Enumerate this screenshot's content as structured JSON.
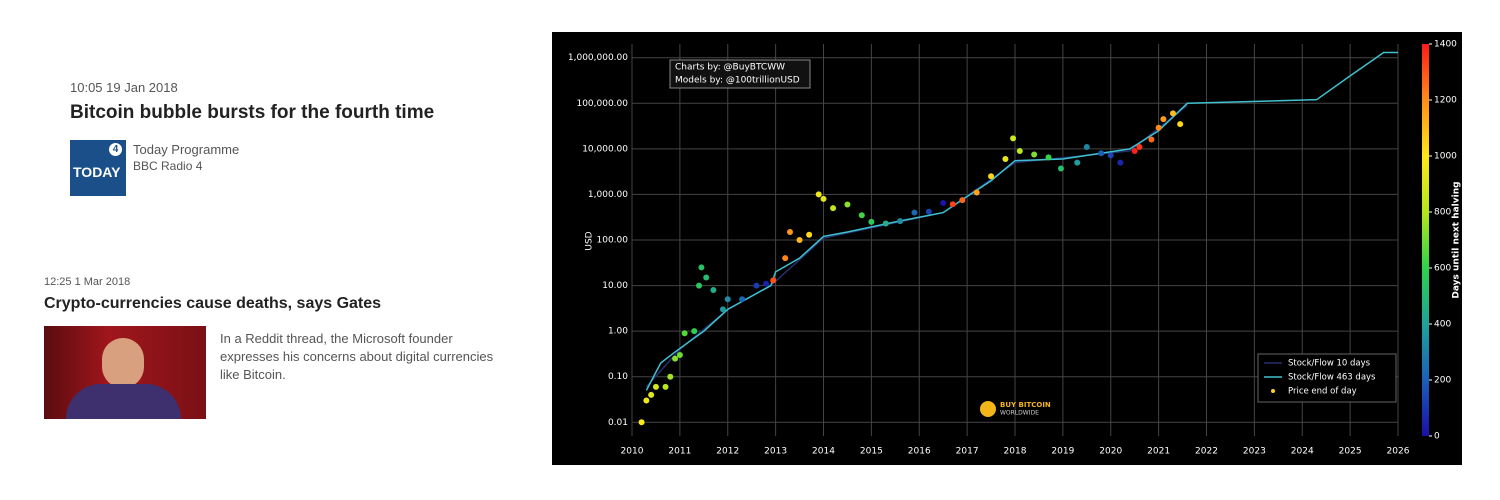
{
  "news": [
    {
      "time": "10:05 19 Jan 2018",
      "headline": "Bitcoin bubble bursts for the fourth time",
      "logo_text": "TODAY",
      "logo_badge": "4",
      "source": "Today Programme",
      "station": "BBC Radio 4"
    },
    {
      "time": "12:25 1 Mar 2018",
      "headline": "Crypto-currencies cause deaths, says Gates",
      "description": "In a Reddit thread, the Microsoft founder expresses his concerns about digital currencies like Bitcoin."
    }
  ],
  "chart_data": {
    "type": "scatter",
    "annotations": [
      "Charts by: @BuyBTCWW",
      "Models by: @100trillionUSD"
    ],
    "watermark": [
      "BUY BITCOIN",
      "WORLDWIDE"
    ],
    "ylabel": "USD",
    "ylog": true,
    "grid": true,
    "xlim": [
      2010,
      2026
    ],
    "xticks": [
      2010,
      2011,
      2012,
      2013,
      2014,
      2015,
      2016,
      2017,
      2018,
      2019,
      2020,
      2021,
      2022,
      2023,
      2024,
      2025,
      2026
    ],
    "ylim": [
      0.005,
      2000000
    ],
    "yticks": [
      {
        "value": 0.01,
        "label": "0.01"
      },
      {
        "value": 0.1,
        "label": "0.10"
      },
      {
        "value": 1,
        "label": "1.00"
      },
      {
        "value": 10,
        "label": "10.00"
      },
      {
        "value": 100,
        "label": "100.00"
      },
      {
        "value": 1000,
        "label": "1,000.00"
      },
      {
        "value": 10000,
        "label": "10,000.00"
      },
      {
        "value": 100000,
        "label": "100,000.00"
      },
      {
        "value": 1000000,
        "label": "1,000,000.00"
      }
    ],
    "colorbar_title": "Days until next halving",
    "clim": [
      0,
      1400
    ],
    "cticks": [
      0,
      200,
      400,
      600,
      800,
      1000,
      1200,
      1400
    ],
    "colorscale": [
      "#1a0fa8",
      "#1b5fb8",
      "#1fa39a",
      "#2ed24a",
      "#b5e61d",
      "#ffe81a",
      "#ff8c1a",
      "#ff1a1a"
    ],
    "legend": "bottom-right",
    "series": [
      {
        "name": "Stock/Flow 10 days",
        "mode": "line",
        "color": "#26306e",
        "x": [
          2010.3,
          2011.0,
          2012.0,
          2012.9,
          2014.0,
          2016.5,
          2018.0,
          2020.4,
          2021.6
        ],
        "values": [
          0.06,
          0.4,
          3,
          10,
          110,
          400,
          5000,
          9000,
          90000
        ]
      },
      {
        "name": "Stock/Flow 463 days",
        "mode": "line",
        "color": "#3fc1cf",
        "x": [
          2010.3,
          2010.6,
          2010.9,
          2011.5,
          2012.0,
          2012.9,
          2013.0,
          2013.5,
          2014.0,
          2014.5,
          2015.5,
          2016.5,
          2017.0,
          2017.5,
          2018.0,
          2019.0,
          2020.4,
          2021.0,
          2021.6,
          2024.3,
          2025.0,
          2025.7,
          2026.0
        ],
        "values": [
          0.05,
          0.2,
          0.35,
          1,
          3,
          10,
          20,
          40,
          120,
          150,
          250,
          400,
          900,
          2000,
          5500,
          6000,
          10000,
          25000,
          100000,
          120000,
          400000,
          1300000,
          1300000
        ]
      },
      {
        "name": "Price end of day",
        "mode": "markers",
        "color": "#ffd21a",
        "x": [
          2010.2,
          2010.3,
          2010.4,
          2010.5,
          2010.7,
          2010.8,
          2010.9,
          2011.0,
          2011.1,
          2011.3,
          2011.4,
          2011.45,
          2011.55,
          2011.7,
          2011.9,
          2012.0,
          2012.3,
          2012.6,
          2012.8,
          2012.95,
          2013.2,
          2013.3,
          2013.5,
          2013.7,
          2013.9,
          2014.0,
          2014.2,
          2014.5,
          2014.8,
          2015.0,
          2015.3,
          2015.6,
          2015.9,
          2016.2,
          2016.5,
          2016.7,
          2016.9,
          2017.2,
          2017.5,
          2017.8,
          2017.96,
          2018.1,
          2018.4,
          2018.7,
          2018.96,
          2019.3,
          2019.5,
          2019.8,
          2020.0,
          2020.2,
          2020.5,
          2020.6,
          2020.85,
          2021.0,
          2021.1,
          2021.3,
          2021.45
        ],
        "values": [
          0.01,
          0.03,
          0.04,
          0.06,
          0.06,
          0.1,
          0.25,
          0.3,
          0.9,
          1,
          10,
          25,
          15,
          8,
          3,
          5,
          5,
          10,
          11,
          13,
          40,
          150,
          100,
          130,
          1000,
          800,
          500,
          600,
          350,
          250,
          230,
          260,
          400,
          420,
          650,
          610,
          750,
          1100,
          2500,
          6000,
          17000,
          9000,
          7500,
          6500,
          3700,
          5000,
          11000,
          8000,
          7200,
          5000,
          9000,
          11000,
          16000,
          29000,
          45000,
          60000,
          35000
        ],
        "color_values": [
          989,
          953,
          916,
          880,
          807,
          770,
          734,
          697,
          661,
          588,
          551,
          533,
          497,
          442,
          369,
          332,
          223,
          113,
          40,
          1303,
          1212,
          1176,
          1103,
          1030,
          957,
          921,
          847,
          738,
          628,
          555,
          445,
          336,
          226,
          117,
          7,
          1336,
          1263,
          1154,
          1044,
          934,
          876,
          825,
          715,
          606,
          511,
          387,
          314,
          204,
          131,
          58,
          1387,
          1351,
          1260,
          1205,
          1168,
          1095,
          1040
        ]
      }
    ]
  }
}
